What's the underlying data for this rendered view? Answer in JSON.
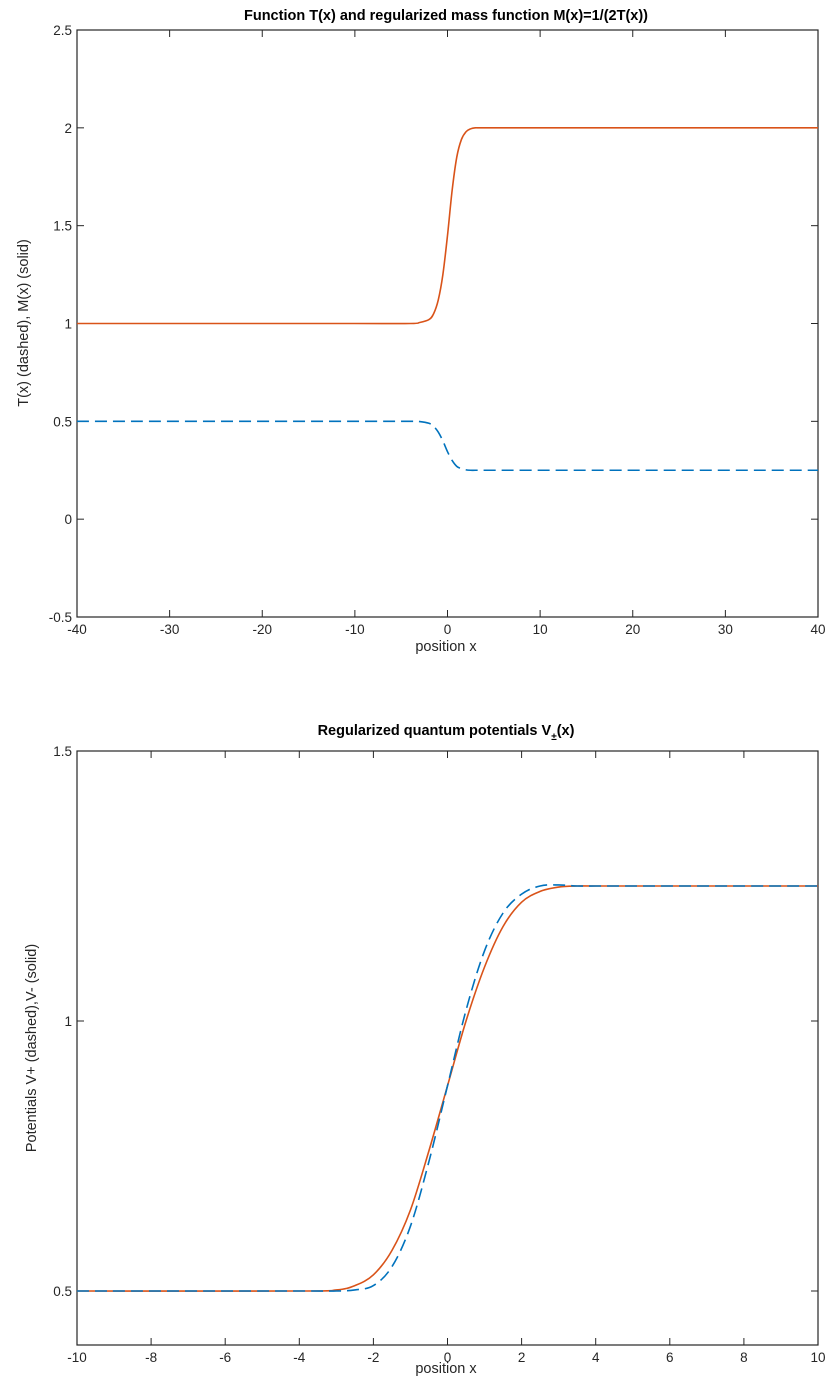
{
  "chart_data": [
    {
      "type": "line",
      "title": "Function T(x) and regularized mass function M(x)=1/(2T(x))",
      "xlabel": "position x",
      "ylabel": "T(x) (dashed), M(x) (solid)",
      "xlim": [
        -40,
        40
      ],
      "ylim": [
        -0.5,
        2.5
      ],
      "xticks": [
        -40,
        -30,
        -20,
        -10,
        0,
        10,
        20,
        30,
        40
      ],
      "yticks": [
        -0.5,
        0,
        0.5,
        1,
        1.5,
        2,
        2.5
      ],
      "grid": false,
      "series": [
        {
          "style": "solid",
          "color": "#d95319",
          "x": [
            -40,
            -10,
            -4,
            -3,
            -2,
            -1.5,
            -1,
            -0.5,
            0,
            0.5,
            1,
            1.5,
            2,
            2.5,
            3,
            4,
            10,
            40
          ],
          "y": [
            1,
            1,
            1.0,
            1.005,
            1.02,
            1.05,
            1.12,
            1.25,
            1.45,
            1.68,
            1.85,
            1.94,
            1.98,
            1.995,
            2.0,
            2.0,
            2.0,
            2.0
          ]
        },
        {
          "style": "dashed",
          "color": "#0072bd",
          "x": [
            -40,
            -10,
            -4,
            -3,
            -2,
            -1.5,
            -1,
            -0.5,
            0,
            0.5,
            1,
            1.5,
            2,
            2.5,
            3,
            4,
            10,
            40
          ],
          "y": [
            0.5,
            0.5,
            0.5,
            0.499,
            0.49,
            0.475,
            0.445,
            0.4,
            0.345,
            0.3,
            0.27,
            0.258,
            0.252,
            0.25,
            0.25,
            0.25,
            0.25,
            0.25
          ]
        }
      ]
    },
    {
      "type": "line",
      "title": "Regularized quantum potentials V",
      "title_sub": "±",
      "title_end": "(x)",
      "xlabel": "position x",
      "ylabel": "Potentials V+ (dashed),V- (solid)",
      "xlim": [
        -10,
        10
      ],
      "ylim": [
        0.4,
        1.5
      ],
      "xticks": [
        -10,
        -8,
        -6,
        -4,
        -2,
        0,
        2,
        4,
        6,
        8,
        10
      ],
      "yticks": [
        0.5,
        1,
        1.5
      ],
      "grid": false,
      "series": [
        {
          "style": "solid",
          "color": "#d95319",
          "x": [
            -10,
            -4,
            -3,
            -2.5,
            -2,
            -1.5,
            -1,
            -0.5,
            0,
            0.5,
            1,
            1.5,
            2,
            2.5,
            3,
            3.5,
            4,
            6,
            10
          ],
          "y": [
            0.5,
            0.5,
            0.502,
            0.51,
            0.53,
            0.575,
            0.65,
            0.76,
            0.88,
            1.0,
            1.1,
            1.175,
            1.22,
            1.24,
            1.248,
            1.25,
            1.25,
            1.25,
            1.25
          ]
        },
        {
          "style": "dashed",
          "color": "#0072bd",
          "x": [
            -10,
            -4,
            -3,
            -2.5,
            -2,
            -1.5,
            -1,
            -0.5,
            0,
            0.5,
            1,
            1.5,
            2,
            2.5,
            3,
            3.5,
            4,
            6,
            10
          ],
          "y": [
            0.5,
            0.5,
            0.5,
            0.502,
            0.51,
            0.545,
            0.62,
            0.74,
            0.88,
            1.02,
            1.13,
            1.2,
            1.235,
            1.25,
            1.252,
            1.25,
            1.25,
            1.25,
            1.25
          ]
        }
      ]
    }
  ]
}
